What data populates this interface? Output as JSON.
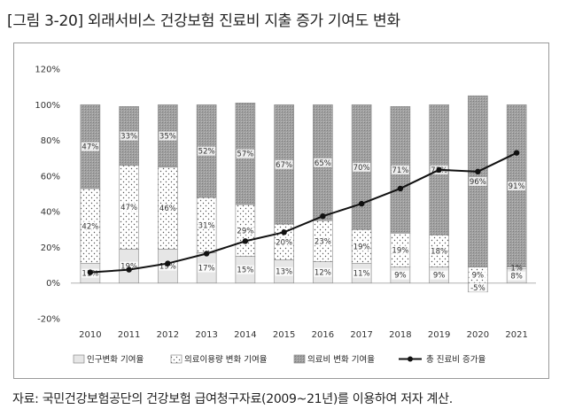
{
  "figure": {
    "title": "[그림 3-20] 외래서비스 건강보험 진료비 지출 증가 기여도 변화",
    "source": "자료: 국민건강보험공단의 건강보험 급여청구자료(2009~21년)를 이용하여 저자 계산."
  },
  "chart_data": {
    "type": "bar",
    "stacked": true,
    "title": "외래서비스 건강보험 진료비 지출 증가 기여도 변화",
    "categories": [
      "2010",
      "2011",
      "2012",
      "2013",
      "2014",
      "2015",
      "2016",
      "2017",
      "2018",
      "2019",
      "2020",
      "2021"
    ],
    "ylim": [
      -20,
      120
    ],
    "yticks": [
      -20,
      0,
      20,
      40,
      60,
      80,
      100,
      120
    ],
    "ytick_labels": [
      "-20%",
      "0%",
      "20%",
      "40%",
      "60%",
      "80%",
      "100%",
      "120%"
    ],
    "series": [
      {
        "name": "인구변화 기여율",
        "kind": "bar",
        "fill": "#e6e6e6",
        "values": [
          11,
          19,
          19,
          17,
          15,
          13,
          12,
          11,
          9,
          9,
          -5,
          8
        ],
        "labels": [
          "11%",
          "19%",
          "19%",
          "17%",
          "15%",
          "13%",
          "12%",
          "11%",
          "9%",
          "9%",
          "-5%",
          "8%"
        ]
      },
      {
        "name": "의료이용량 변화 기여율",
        "kind": "bar",
        "fill": "dots",
        "values": [
          42,
          47,
          46,
          31,
          29,
          20,
          23,
          19,
          19,
          18,
          9,
          1
        ],
        "labels": [
          "42%",
          "47%",
          "46%",
          "31%",
          "29%",
          "20%",
          "23%",
          "19%",
          "19%",
          "18%",
          "9%",
          "1%"
        ]
      },
      {
        "name": "의료비 변화 기여율",
        "kind": "bar",
        "fill": "#9a9a9a",
        "values": [
          47,
          33,
          35,
          52,
          57,
          67,
          65,
          70,
          71,
          73,
          96,
          91
        ],
        "labels": [
          "47%",
          "33%",
          "35%",
          "52%",
          "57%",
          "67%",
          "65%",
          "70%",
          "71%",
          "73%",
          "96%",
          "91%"
        ]
      },
      {
        "name": "총 진료비 증가율",
        "kind": "line",
        "color": "#111111",
        "values": [
          6,
          7.5,
          11,
          16.5,
          23.5,
          28.5,
          37.5,
          44.5,
          53,
          63.5,
          62.5,
          73
        ]
      }
    ],
    "legend": [
      "인구변화 기여율",
      "의료이용량 변화 기여율",
      "의료비 변화 기여율",
      "총 진료비 증가율"
    ],
    "legend_position": "bottom"
  }
}
